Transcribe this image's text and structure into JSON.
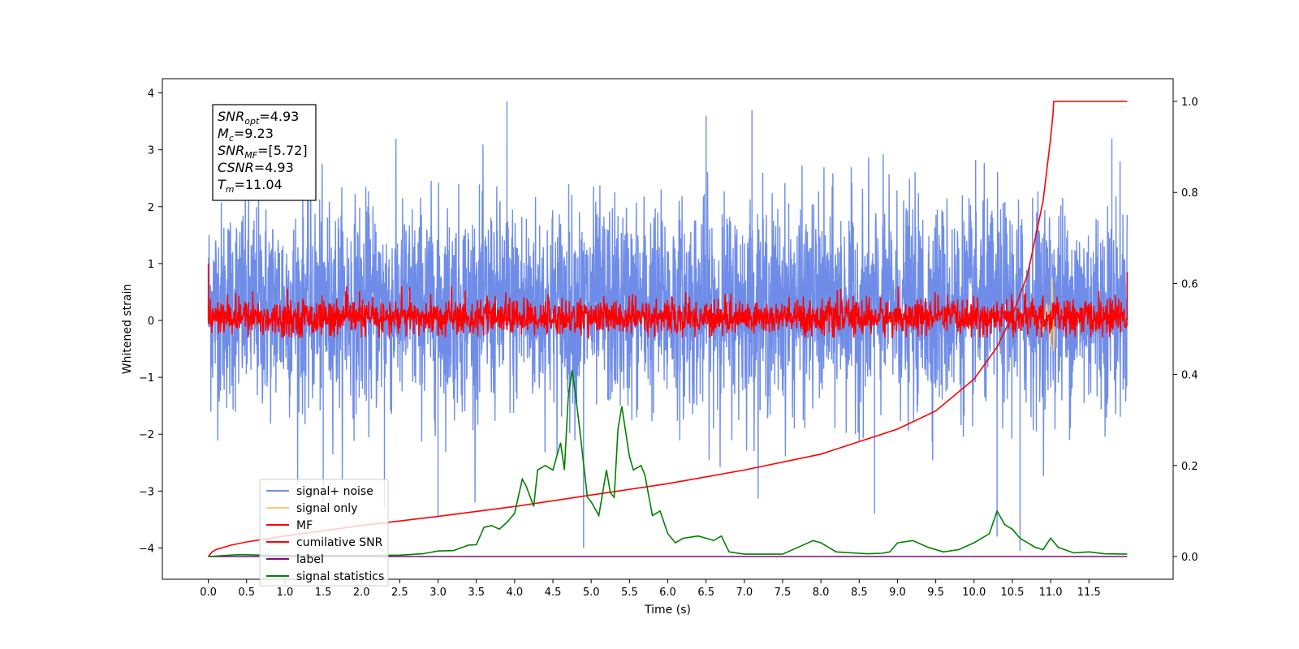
{
  "chart_data": {
    "type": "line",
    "xlabel": "Time (s)",
    "ylabel": "Whitened strain",
    "xlim": [
      -0.6,
      12.6
    ],
    "ylim": [
      -4.55,
      4.25
    ],
    "ylim_right": [
      -0.05,
      1.05
    ],
    "x_ticks": [
      0.0,
      0.5,
      1.0,
      1.5,
      2.0,
      2.5,
      3.0,
      3.5,
      4.0,
      4.5,
      5.0,
      5.5,
      6.0,
      6.5,
      7.0,
      7.5,
      8.0,
      8.5,
      9.0,
      9.5,
      10.0,
      10.5,
      11.0,
      11.5
    ],
    "x_tick_labels": [
      "0.0",
      "0.5",
      "1.0",
      "1.5",
      "2.0",
      "2.5",
      "3.0",
      "3.5",
      "4.0",
      "4.5",
      "5.0",
      "5.5",
      "6.0",
      "6.5",
      "7.0",
      "7.5",
      "8.0",
      "8.5",
      "9.0",
      "9.5",
      "10.0",
      "10.5",
      "11.0",
      "11.5"
    ],
    "y_ticks": [
      -4,
      -3,
      -2,
      -1,
      0,
      1,
      2,
      3,
      4
    ],
    "y_tick_labels": [
      "−4",
      "−3",
      "−2",
      "−1",
      "0",
      "1",
      "2",
      "3",
      "4"
    ],
    "y_right_ticks": [
      0.0,
      0.2,
      0.4,
      0.6,
      0.8,
      1.0
    ],
    "y_right_tick_labels": [
      "0.0",
      "0.2",
      "0.4",
      "0.6",
      "0.8",
      "1.0"
    ],
    "grid": false,
    "legend_position": "lower-left",
    "annotation": {
      "position": "top-left",
      "lines": [
        {
          "base": "SNR",
          "sub": "opt",
          "rest": "=4.93"
        },
        {
          "base": "M",
          "sub": "c",
          "rest": "=9.23"
        },
        {
          "base": "SNR",
          "sub": "MF",
          "rest": "=[5.72]"
        },
        {
          "base": "CSNR",
          "sub": "",
          "rest": "=4.93"
        },
        {
          "base": "T",
          "sub": "m",
          "rest": "=11.04"
        }
      ]
    },
    "series": [
      {
        "name": "signal+ noise",
        "color": "#6f8de8",
        "axis": "left",
        "x_range": [
          0.0,
          12.0
        ],
        "approx_range": [
          -3.2,
          3.85
        ],
        "spikes": [
          [
            1.5,
            -3.2
          ],
          [
            2.3,
            -3.3
          ],
          [
            3.0,
            -3.45
          ],
          [
            3.9,
            3.85
          ],
          [
            4.9,
            -4.0
          ],
          [
            6.5,
            3.6
          ],
          [
            7.1,
            3.7
          ],
          [
            8.7,
            -3.4
          ],
          [
            10.3,
            -3.8
          ],
          [
            10.6,
            -4.05
          ],
          [
            11.8,
            3.2
          ]
        ]
      },
      {
        "name": "signal only",
        "color": "#f5c97a",
        "axis": "left",
        "x": [
          10.6,
          10.8,
          10.9,
          10.95,
          11.0,
          11.02,
          11.04,
          11.06
        ],
        "y": [
          0.0,
          0.12,
          -0.2,
          0.3,
          -0.45,
          0.75,
          -0.55,
          0.0
        ]
      },
      {
        "name": "MF",
        "color": "#ff0000",
        "axis": "left",
        "x_range": [
          0.0,
          12.0
        ],
        "approx_range": [
          -0.3,
          0.6
        ],
        "edge_values": [
          [
            0.0,
            1.0
          ],
          [
            12.0,
            0.85
          ]
        ]
      },
      {
        "name": "cumilative SNR",
        "color": "#ff0000",
        "axis": "right",
        "x": [
          0.0,
          0.05,
          0.1,
          0.3,
          0.5,
          1.0,
          2.0,
          3.0,
          4.0,
          5.0,
          6.0,
          7.0,
          8.0,
          9.0,
          9.5,
          10.0,
          10.3,
          10.5,
          10.7,
          10.8,
          10.9,
          10.95,
          11.0,
          11.03,
          11.04,
          11.5,
          12.0
        ],
        "y": [
          0.0,
          0.01,
          0.015,
          0.025,
          0.032,
          0.045,
          0.068,
          0.088,
          0.11,
          0.135,
          0.16,
          0.19,
          0.225,
          0.28,
          0.32,
          0.39,
          0.46,
          0.53,
          0.62,
          0.7,
          0.78,
          0.85,
          0.92,
          0.97,
          1.0,
          1.0,
          1.0
        ]
      },
      {
        "name": "label",
        "color": "#7b0a7b",
        "axis": "right",
        "x": [
          0.0,
          12.0
        ],
        "y": [
          0.0,
          0.0
        ]
      },
      {
        "name": "signal statistics",
        "color": "#008000",
        "axis": "right",
        "x": [
          0.0,
          0.4,
          1.0,
          2.0,
          2.5,
          2.8,
          3.0,
          3.2,
          3.4,
          3.5,
          3.6,
          3.7,
          3.8,
          3.9,
          4.0,
          4.1,
          4.15,
          4.25,
          4.3,
          4.4,
          4.5,
          4.6,
          4.65,
          4.7,
          4.75,
          4.8,
          4.85,
          4.95,
          5.0,
          5.1,
          5.2,
          5.25,
          5.3,
          5.35,
          5.4,
          5.5,
          5.55,
          5.65,
          5.7,
          5.8,
          5.9,
          6.0,
          6.1,
          6.2,
          6.4,
          6.5,
          6.6,
          6.7,
          6.8,
          7.0,
          7.5,
          7.7,
          7.9,
          8.0,
          8.2,
          8.4,
          8.6,
          8.8,
          8.9,
          9.0,
          9.2,
          9.4,
          9.6,
          9.8,
          10.0,
          10.2,
          10.3,
          10.4,
          10.5,
          10.6,
          10.8,
          10.9,
          11.0,
          11.1,
          11.3,
          11.5,
          11.7,
          12.0
        ],
        "y": [
          0.0,
          0.004,
          0.002,
          0.002,
          0.003,
          0.006,
          0.012,
          0.013,
          0.025,
          0.026,
          0.064,
          0.068,
          0.06,
          0.075,
          0.095,
          0.17,
          0.155,
          0.11,
          0.19,
          0.2,
          0.19,
          0.25,
          0.19,
          0.35,
          0.41,
          0.35,
          0.28,
          0.13,
          0.12,
          0.09,
          0.19,
          0.14,
          0.13,
          0.28,
          0.33,
          0.22,
          0.19,
          0.2,
          0.18,
          0.09,
          0.1,
          0.05,
          0.03,
          0.04,
          0.045,
          0.04,
          0.035,
          0.045,
          0.01,
          0.005,
          0.005,
          0.02,
          0.035,
          0.03,
          0.01,
          0.008,
          0.006,
          0.007,
          0.01,
          0.03,
          0.035,
          0.02,
          0.01,
          0.015,
          0.03,
          0.05,
          0.1,
          0.07,
          0.06,
          0.04,
          0.02,
          0.015,
          0.04,
          0.02,
          0.008,
          0.01,
          0.006,
          0.005
        ]
      }
    ]
  }
}
